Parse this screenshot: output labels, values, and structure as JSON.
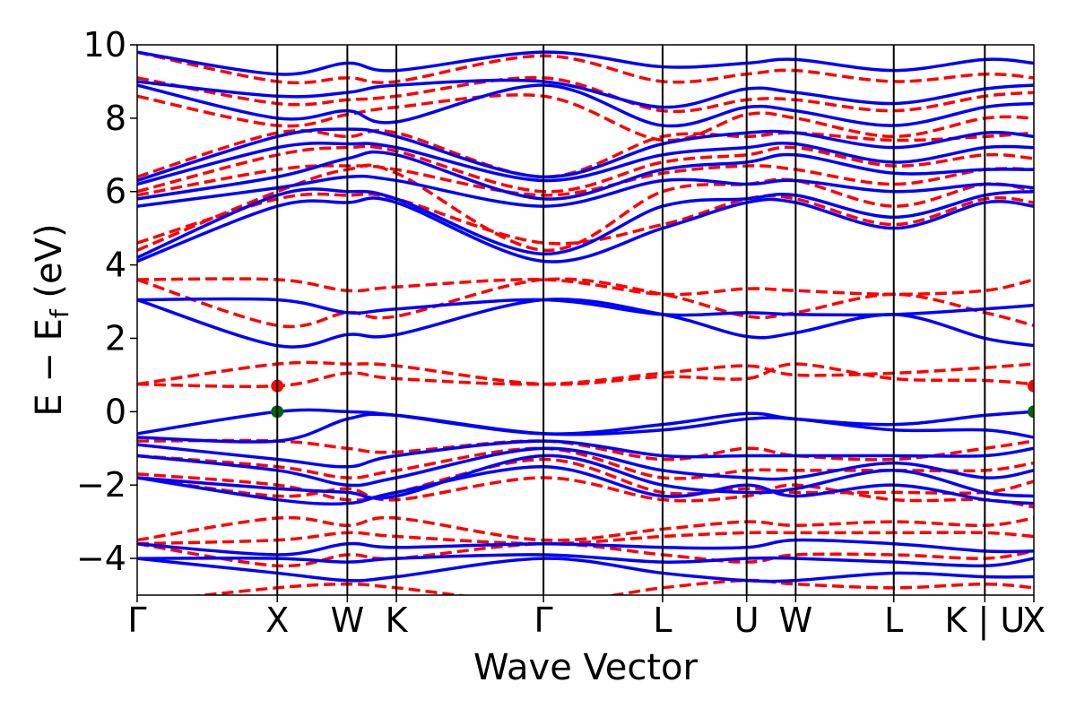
{
  "chart_data": {
    "type": "line",
    "xlabel": "Wave Vector",
    "ylabel": "E − E",
    "ylabel_sub": "f",
    "ylabel_unit": " (eV)",
    "ylim": [
      -5,
      10
    ],
    "y_ticks": [
      -4,
      -2,
      0,
      2,
      4,
      6,
      8,
      10
    ],
    "y_tick_labels": [
      "−4",
      "−2",
      "0",
      "2",
      "4",
      "6",
      "8",
      "10"
    ],
    "x_range": [
      0,
      6.4
    ],
    "kpoints": [
      {
        "label": "Γ",
        "x": 0
      },
      {
        "label": "X",
        "x": 1.0
      },
      {
        "label": "W",
        "x": 1.5
      },
      {
        "label": "K",
        "x": 1.85
      },
      {
        "label": "Γ",
        "x": 2.9
      },
      {
        "label": "L",
        "x": 3.75
      },
      {
        "label": "U",
        "x": 4.35
      },
      {
        "label": "W",
        "x": 4.7
      },
      {
        "label": "L",
        "x": 5.4
      },
      {
        "label": "K | U",
        "x": 6.05
      },
      {
        "label": "X",
        "x": 6.4
      }
    ],
    "colors": {
      "blue": "#0000ff",
      "red": "#ff0000",
      "vbm": "#006400",
      "cbm": "#ff0000"
    },
    "series": [
      {
        "style": "solid",
        "color": "#0000ff",
        "x": [
          0,
          1.0,
          1.5,
          1.85,
          2.9,
          3.75,
          4.35,
          4.7,
          5.4,
          6.05,
          6.4
        ],
        "y": [
          -0.6,
          0.0,
          0.0,
          -0.1,
          -0.6,
          -0.35,
          -0.05,
          -0.2,
          -0.35,
          -0.1,
          0.0
        ]
      },
      {
        "style": "solid",
        "color": "#0000ff",
        "x": [
          0,
          1.0,
          1.5,
          1.85,
          2.9,
          3.75,
          4.35,
          4.7,
          5.4,
          6.05,
          6.4
        ],
        "y": [
          -0.7,
          -0.8,
          -0.2,
          -0.1,
          -0.6,
          -0.5,
          -0.2,
          -0.2,
          -0.5,
          -0.5,
          -0.7
        ]
      },
      {
        "style": "solid",
        "color": "#0000ff",
        "x": [
          0,
          1.0,
          1.5,
          1.85,
          2.9,
          3.75,
          4.35,
          4.7,
          5.4,
          6.05,
          6.4
        ],
        "y": [
          -0.9,
          -1.3,
          -1.5,
          -1.2,
          -0.8,
          -1.2,
          -1.2,
          -1.2,
          -1.2,
          -1.2,
          -1.0
        ]
      },
      {
        "style": "solid",
        "color": "#0000ff",
        "x": [
          0,
          1.0,
          1.5,
          1.85,
          2.9,
          3.75,
          4.35,
          4.7,
          5.4,
          6.05,
          6.4
        ],
        "y": [
          -1.2,
          -1.6,
          -2.0,
          -1.8,
          -1.0,
          -1.6,
          -1.8,
          -1.8,
          -1.4,
          -1.8,
          -1.6
        ]
      },
      {
        "style": "solid",
        "color": "#0000ff",
        "x": [
          0,
          1.0,
          1.5,
          1.85,
          2.9,
          3.75,
          4.35,
          4.7,
          5.4,
          6.05,
          6.4
        ],
        "y": [
          -1.8,
          -2.1,
          -2.2,
          -2.3,
          -1.2,
          -2.0,
          -2.2,
          -2.1,
          -1.6,
          -2.2,
          -2.3
        ]
      },
      {
        "style": "solid",
        "color": "#0000ff",
        "x": [
          0,
          1.0,
          1.5,
          1.85,
          2.9,
          3.75,
          4.35,
          4.7,
          5.4,
          6.05,
          6.4
        ],
        "y": [
          -1.8,
          -2.4,
          -2.5,
          -2.2,
          -1.5,
          -2.3,
          -2.0,
          -2.3,
          -2.0,
          -2.4,
          -2.5
        ]
      },
      {
        "style": "solid",
        "color": "#0000ff",
        "x": [
          0,
          1.0,
          1.5,
          1.85,
          2.9,
          3.75,
          4.35,
          4.7,
          5.4,
          6.05,
          6.4
        ],
        "y": [
          -3.6,
          -3.9,
          -3.6,
          -3.7,
          -3.6,
          -3.7,
          -3.7,
          -3.5,
          -3.6,
          -3.8,
          -3.8
        ]
      },
      {
        "style": "solid",
        "color": "#0000ff",
        "x": [
          0,
          1.0,
          1.5,
          1.85,
          2.9,
          3.75,
          4.35,
          4.7,
          5.4,
          6.05,
          6.4
        ],
        "y": [
          -4.0,
          -4.0,
          -4.1,
          -4.0,
          -3.9,
          -4.1,
          -4.0,
          -4.0,
          -4.1,
          -4.2,
          -4.0
        ]
      },
      {
        "style": "solid",
        "color": "#0000ff",
        "x": [
          0,
          1.0,
          1.5,
          1.85,
          2.9,
          3.75,
          4.35,
          4.7,
          5.4,
          6.05,
          6.4
        ],
        "y": [
          -4.0,
          -4.4,
          -4.6,
          -4.5,
          -4.0,
          -4.4,
          -4.6,
          -4.6,
          -4.4,
          -4.5,
          -4.5
        ]
      },
      {
        "style": "solid",
        "color": "#0000ff",
        "x": [
          0,
          1.0,
          1.5,
          1.85,
          2.9,
          3.75,
          4.35,
          4.7,
          5.4,
          6.05,
          6.4
        ],
        "y": [
          3.05,
          1.8,
          2.1,
          2.1,
          3.05,
          2.65,
          2.05,
          2.15,
          2.65,
          2.0,
          1.8
        ]
      },
      {
        "style": "solid",
        "color": "#0000ff",
        "x": [
          0,
          1.0,
          1.5,
          1.85,
          2.9,
          3.75,
          4.35,
          4.7,
          5.4,
          6.05,
          6.4
        ],
        "y": [
          3.05,
          3.05,
          2.7,
          2.8,
          3.05,
          2.65,
          2.7,
          2.65,
          2.65,
          2.8,
          2.9
        ]
      },
      {
        "style": "solid",
        "color": "#0000ff",
        "x": [
          0,
          1.0,
          1.5,
          1.85,
          2.9,
          3.75,
          4.35,
          4.7,
          5.4,
          6.05,
          6.4
        ],
        "y": [
          4.1,
          5.6,
          5.7,
          5.7,
          4.1,
          5.0,
          5.7,
          5.7,
          5.0,
          5.7,
          5.6
        ]
      },
      {
        "style": "solid",
        "color": "#0000ff",
        "x": [
          0,
          1.0,
          1.5,
          1.85,
          2.9,
          3.75,
          4.35,
          4.7,
          5.4,
          6.05,
          6.4
        ],
        "y": [
          4.2,
          5.9,
          6.0,
          5.8,
          4.3,
          5.6,
          5.8,
          5.9,
          5.3,
          5.9,
          6.0
        ]
      },
      {
        "style": "solid",
        "color": "#0000ff",
        "x": [
          0,
          1.0,
          1.5,
          1.85,
          2.9,
          3.75,
          4.35,
          4.7,
          5.4,
          6.05,
          6.4
        ],
        "y": [
          5.6,
          6.1,
          6.4,
          6.3,
          5.6,
          6.3,
          6.2,
          6.3,
          6.0,
          6.2,
          6.1
        ]
      },
      {
        "style": "solid",
        "color": "#0000ff",
        "x": [
          0,
          1.0,
          1.5,
          1.85,
          2.9,
          3.75,
          4.35,
          4.7,
          5.4,
          6.05,
          6.4
        ],
        "y": [
          5.8,
          6.4,
          6.9,
          7.0,
          5.8,
          6.6,
          6.8,
          7.0,
          6.5,
          6.6,
          6.6
        ]
      },
      {
        "style": "solid",
        "color": "#0000ff",
        "x": [
          0,
          1.0,
          1.5,
          1.85,
          2.9,
          3.75,
          4.35,
          4.7,
          5.4,
          6.05,
          6.4
        ],
        "y": [
          6.2,
          7.2,
          7.3,
          7.2,
          6.3,
          7.0,
          7.2,
          7.3,
          6.8,
          7.2,
          7.2
        ]
      },
      {
        "style": "solid",
        "color": "#0000ff",
        "x": [
          0,
          1.0,
          1.5,
          1.85,
          2.9,
          3.75,
          4.35,
          4.7,
          5.4,
          6.05,
          6.4
        ],
        "y": [
          6.3,
          7.5,
          7.7,
          7.5,
          6.4,
          7.3,
          7.6,
          7.6,
          7.2,
          7.6,
          7.5
        ]
      },
      {
        "style": "solid",
        "color": "#0000ff",
        "x": [
          0,
          1.0,
          1.5,
          1.85,
          2.9,
          3.75,
          4.35,
          4.7,
          5.4,
          6.05,
          6.4
        ],
        "y": [
          8.9,
          8.0,
          8.2,
          7.9,
          8.9,
          7.8,
          8.3,
          8.2,
          7.8,
          8.3,
          8.4
        ]
      },
      {
        "style": "solid",
        "color": "#0000ff",
        "x": [
          0,
          1.0,
          1.5,
          1.85,
          2.9,
          3.75,
          4.35,
          4.7,
          5.4,
          6.05,
          6.4
        ],
        "y": [
          9.0,
          8.6,
          8.7,
          8.9,
          9.0,
          8.3,
          8.8,
          8.7,
          8.4,
          8.8,
          8.9
        ]
      },
      {
        "style": "solid",
        "color": "#0000ff",
        "x": [
          0,
          1.0,
          1.5,
          1.85,
          2.9,
          3.75,
          4.35,
          4.7,
          5.4,
          6.05,
          6.4
        ],
        "y": [
          9.8,
          9.2,
          9.5,
          9.3,
          9.8,
          9.4,
          9.5,
          9.6,
          9.3,
          9.6,
          9.5
        ]
      },
      {
        "style": "dashed",
        "color": "#ff0000",
        "x": [
          0,
          1.0,
          1.5,
          1.85,
          2.9,
          3.75,
          4.35,
          4.7,
          5.4,
          6.05,
          6.4
        ],
        "y": [
          0.75,
          0.7,
          1.05,
          0.9,
          0.75,
          1.05,
          1.25,
          1.0,
          1.05,
          1.2,
          1.3
        ]
      },
      {
        "style": "dashed",
        "color": "#ff0000",
        "x": [
          0,
          1.0,
          1.5,
          1.85,
          2.9,
          3.75,
          4.35,
          4.7,
          5.4,
          6.05,
          6.4
        ],
        "y": [
          0.75,
          1.3,
          1.3,
          1.25,
          0.75,
          0.95,
          0.9,
          1.3,
          0.9,
          0.85,
          0.75
        ]
      },
      {
        "style": "dashed",
        "color": "#ff0000",
        "x": [
          0,
          1.0,
          1.5,
          1.85,
          2.9,
          3.75,
          4.35,
          4.7,
          5.4,
          6.05,
          6.4
        ],
        "y": [
          3.6,
          3.6,
          3.3,
          3.4,
          3.6,
          3.2,
          3.35,
          3.3,
          3.2,
          3.3,
          3.6
        ]
      },
      {
        "style": "dashed",
        "color": "#ff0000",
        "x": [
          0,
          1.0,
          1.5,
          1.85,
          2.9,
          3.75,
          4.35,
          4.7,
          5.4,
          6.05,
          6.4
        ],
        "y": [
          3.6,
          2.35,
          2.7,
          2.6,
          3.6,
          3.2,
          2.6,
          2.7,
          3.2,
          2.7,
          2.35
        ]
      },
      {
        "style": "dashed",
        "color": "#ff0000",
        "x": [
          0,
          1.0,
          1.5,
          1.85,
          2.9,
          3.75,
          4.35,
          4.7,
          5.4,
          6.05,
          6.4
        ],
        "y": [
          -0.8,
          -0.8,
          -1.0,
          -1.1,
          -0.8,
          -1.3,
          -1.0,
          -1.2,
          -1.3,
          -1.0,
          -0.8
        ]
      },
      {
        "style": "dashed",
        "color": "#ff0000",
        "x": [
          0,
          1.0,
          1.5,
          1.85,
          2.9,
          3.75,
          4.35,
          4.7,
          5.4,
          6.05,
          6.4
        ],
        "y": [
          -1.2,
          -1.5,
          -1.8,
          -1.6,
          -1.0,
          -1.8,
          -1.6,
          -1.6,
          -1.6,
          -1.6,
          -1.4
        ]
      },
      {
        "style": "dashed",
        "color": "#ff0000",
        "x": [
          0,
          1.0,
          1.5,
          1.85,
          2.9,
          3.75,
          4.35,
          4.7,
          5.4,
          6.05,
          6.4
        ],
        "y": [
          -1.7,
          -2.0,
          -2.4,
          -2.2,
          -1.3,
          -2.2,
          -2.1,
          -2.2,
          -2.2,
          -2.2,
          -1.9
        ]
      },
      {
        "style": "dashed",
        "color": "#ff0000",
        "x": [
          0,
          1.0,
          1.5,
          1.85,
          2.9,
          3.75,
          4.35,
          4.7,
          5.4,
          6.05,
          6.4
        ],
        "y": [
          -1.8,
          -2.3,
          -2.1,
          -2.4,
          -1.8,
          -2.4,
          -2.3,
          -2.0,
          -2.4,
          -2.4,
          -2.6
        ]
      },
      {
        "style": "dashed",
        "color": "#ff0000",
        "x": [
          0,
          1.0,
          1.5,
          1.85,
          2.9,
          3.75,
          4.35,
          4.7,
          5.4,
          6.05,
          6.4
        ],
        "y": [
          -3.5,
          -2.9,
          -3.1,
          -2.9,
          -3.5,
          -3.2,
          -3.0,
          -3.1,
          -3.0,
          -3.1,
          -2.9
        ]
      },
      {
        "style": "dashed",
        "color": "#ff0000",
        "x": [
          0,
          1.0,
          1.5,
          1.85,
          2.9,
          3.75,
          4.35,
          4.7,
          5.4,
          6.05,
          6.4
        ],
        "y": [
          -3.6,
          -3.5,
          -3.3,
          -3.4,
          -3.6,
          -3.4,
          -3.3,
          -3.3,
          -3.3,
          -3.3,
          -3.4
        ]
      },
      {
        "style": "dashed",
        "color": "#ff0000",
        "x": [
          0,
          1.0,
          1.5,
          1.85,
          2.9,
          3.75,
          4.35,
          4.7,
          5.4,
          6.05,
          6.4
        ],
        "y": [
          -3.6,
          -4.2,
          -3.9,
          -4.0,
          -3.6,
          -3.9,
          -4.1,
          -3.9,
          -3.9,
          -4.0,
          -3.8
        ]
      },
      {
        "style": "dashed",
        "color": "#ff0000",
        "x": [
          0,
          1.0,
          1.5,
          1.85,
          2.9,
          3.75,
          4.35,
          4.7,
          5.4,
          6.05,
          6.4
        ],
        "y": [
          -5.2,
          -4.8,
          -4.7,
          -4.8,
          -5.2,
          -4.8,
          -4.6,
          -4.7,
          -4.8,
          -4.7,
          -4.8
        ]
      },
      {
        "style": "dashed",
        "color": "#ff0000",
        "x": [
          0,
          1.0,
          1.5,
          1.85,
          2.9,
          3.75,
          4.35,
          4.7,
          5.4,
          6.05,
          6.4
        ],
        "y": [
          4.6,
          5.8,
          5.9,
          5.8,
          4.6,
          5.1,
          5.8,
          5.8,
          5.1,
          5.8,
          5.7
        ]
      },
      {
        "style": "dashed",
        "color": "#ff0000",
        "x": [
          0,
          1.0,
          1.5,
          1.85,
          2.9,
          3.75,
          4.35,
          4.7,
          5.4,
          6.05,
          6.4
        ],
        "y": [
          4.4,
          6.0,
          6.6,
          6.5,
          4.4,
          6.0,
          6.2,
          6.3,
          5.6,
          6.2,
          6.0
        ]
      },
      {
        "style": "dashed",
        "color": "#ff0000",
        "x": [
          0,
          1.0,
          1.5,
          1.85,
          2.9,
          3.75,
          4.35,
          4.7,
          5.4,
          6.05,
          6.4
        ],
        "y": [
          5.9,
          6.6,
          6.7,
          6.6,
          5.9,
          6.5,
          6.7,
          6.6,
          6.2,
          6.6,
          6.6
        ]
      },
      {
        "style": "dashed",
        "color": "#ff0000",
        "x": [
          0,
          1.0,
          1.5,
          1.85,
          2.9,
          3.75,
          4.35,
          4.7,
          5.4,
          6.05,
          6.4
        ],
        "y": [
          6.0,
          7.0,
          7.2,
          7.1,
          6.0,
          6.8,
          7.0,
          7.2,
          6.7,
          7.0,
          6.9
        ]
      },
      {
        "style": "dashed",
        "color": "#ff0000",
        "x": [
          0,
          1.0,
          1.5,
          1.85,
          2.9,
          3.75,
          4.35,
          4.7,
          5.4,
          6.05,
          6.4
        ],
        "y": [
          6.4,
          7.6,
          7.5,
          7.6,
          6.4,
          7.5,
          7.5,
          7.6,
          7.4,
          7.5,
          7.6
        ]
      },
      {
        "style": "dashed",
        "color": "#ff0000",
        "x": [
          0,
          1.0,
          1.5,
          1.85,
          2.9,
          3.75,
          4.35,
          4.7,
          5.4,
          6.05,
          6.4
        ],
        "y": [
          8.6,
          7.8,
          8.1,
          8.3,
          8.6,
          7.4,
          8.1,
          8.0,
          7.5,
          8.0,
          8.0
        ]
      },
      {
        "style": "dashed",
        "color": "#ff0000",
        "x": [
          0,
          1.0,
          1.5,
          1.85,
          2.9,
          3.75,
          4.35,
          4.7,
          5.4,
          6.05,
          6.4
        ],
        "y": [
          9.1,
          8.4,
          8.5,
          8.6,
          9.1,
          8.2,
          8.5,
          8.5,
          8.2,
          8.6,
          8.7
        ]
      },
      {
        "style": "dashed",
        "color": "#ff0000",
        "x": [
          0,
          1.0,
          1.5,
          1.85,
          2.9,
          3.75,
          4.35,
          4.7,
          5.4,
          6.05,
          6.4
        ],
        "y": [
          9.8,
          9.0,
          9.1,
          9.0,
          9.7,
          9.0,
          9.2,
          9.3,
          9.0,
          9.2,
          9.1
        ]
      }
    ],
    "markers": [
      {
        "x": 1.0,
        "y": 0.7,
        "color": "#ff0000"
      },
      {
        "x": 1.0,
        "y": 0.0,
        "color": "#006400"
      },
      {
        "x": 6.4,
        "y": 0.7,
        "color": "#ff0000"
      },
      {
        "x": 6.4,
        "y": 0.0,
        "color": "#006400"
      }
    ]
  }
}
